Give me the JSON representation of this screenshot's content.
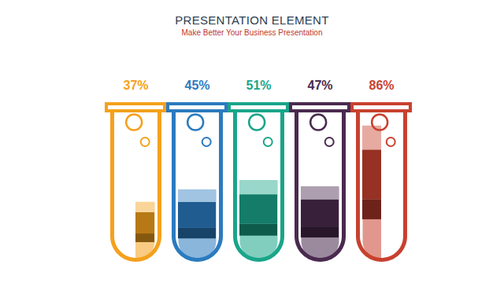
{
  "chart_data": {
    "type": "bar",
    "title": "PRESENTATION ELEMENT",
    "subtitle": "Make Better Your Business Presentation",
    "categories": [
      null,
      null,
      null,
      null,
      null
    ],
    "values": [
      37,
      45,
      51,
      47,
      86
    ],
    "value_labels": [
      "37%",
      "45%",
      "51%",
      "47%",
      "86%"
    ],
    "colors": [
      "#f4a11d",
      "#2b7bbf",
      "#1aa58a",
      "#4a2a4f",
      "#c8412f"
    ],
    "ylim": [
      0,
      100
    ],
    "tick_labels": false,
    "data_labels": true
  }
}
